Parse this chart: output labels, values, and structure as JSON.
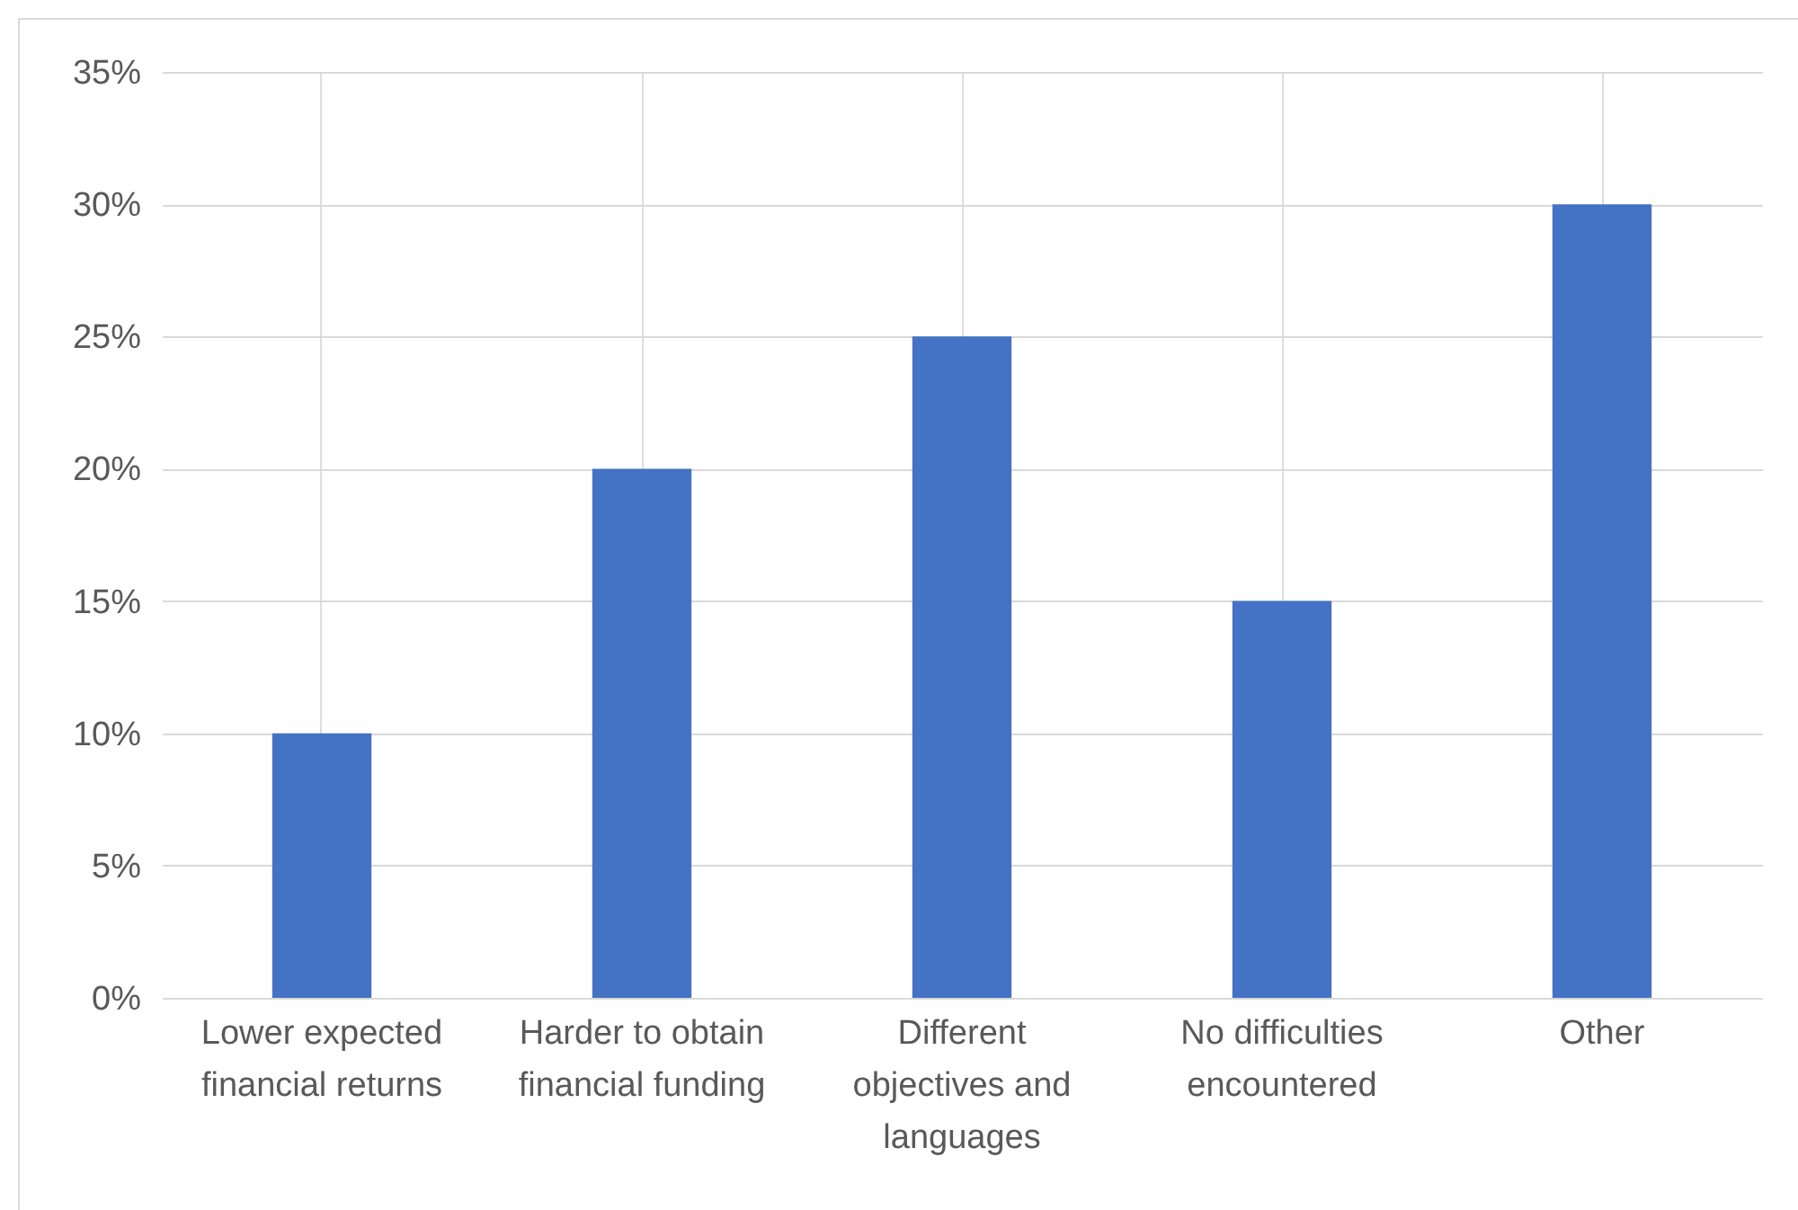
{
  "chart_data": {
    "type": "bar",
    "categories": [
      "Lower expected financial returns",
      "Harder to obtain financial funding",
      "Different objectives and languages",
      "No difficulties encountered",
      "Other"
    ],
    "values": [
      10,
      20,
      25,
      15,
      30
    ],
    "color": "#4472c4",
    "ylim": [
      0,
      35
    ],
    "yticks": [
      {
        "value": 0,
        "label": "0%"
      },
      {
        "value": 5,
        "label": "5%"
      },
      {
        "value": 10,
        "label": "10%"
      },
      {
        "value": 15,
        "label": "15%"
      },
      {
        "value": 20,
        "label": "20%"
      },
      {
        "value": 25,
        "label": "25%"
      },
      {
        "value": 30,
        "label": "30%"
      },
      {
        "value": 35,
        "label": "35%"
      }
    ],
    "grid": true
  }
}
